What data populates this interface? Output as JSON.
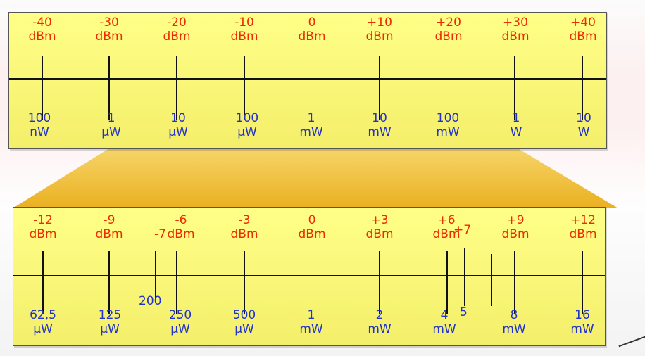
{
  "top_scale": {
    "items": [
      {
        "dbm_value": "-40",
        "dbm_unit": "dBm",
        "power_value": "100",
        "power_unit": "nW"
      },
      {
        "dbm_value": "-30",
        "dbm_unit": "dBm",
        "power_value": "1",
        "power_unit": "µW"
      },
      {
        "dbm_value": "-20",
        "dbm_unit": "dBm",
        "power_value": "10",
        "power_unit": "µW"
      },
      {
        "dbm_value": "-10",
        "dbm_unit": "dBm",
        "power_value": "100",
        "power_unit": "µW"
      },
      {
        "dbm_value": "0",
        "dbm_unit": "dBm",
        "power_value": "1",
        "power_unit": "mW"
      },
      {
        "dbm_value": "+10",
        "dbm_unit": "dBm",
        "power_value": "10",
        "power_unit": "mW"
      },
      {
        "dbm_value": "+20",
        "dbm_unit": "dBm",
        "power_value": "100",
        "power_unit": "mW"
      },
      {
        "dbm_value": "+30",
        "dbm_unit": "dBm",
        "power_value": "1",
        "power_unit": "W"
      },
      {
        "dbm_value": "+40",
        "dbm_unit": "dBm",
        "power_value": "10",
        "power_unit": "W"
      }
    ]
  },
  "bottom_scale": {
    "items": [
      {
        "dbm_value": "-12",
        "dbm_unit": "dBm",
        "power_value": "62,5",
        "power_unit": "µW"
      },
      {
        "dbm_value": "-9",
        "dbm_unit": "dBm",
        "power_value": "125",
        "power_unit": "µW"
      },
      {
        "dbm_value": "-6",
        "dbm_unit": "dBm",
        "power_value": "250",
        "power_unit": "µW"
      },
      {
        "dbm_value": "-3",
        "dbm_unit": "dBm",
        "power_value": "500",
        "power_unit": "µW"
      },
      {
        "dbm_value": "0",
        "dbm_unit": "dBm",
        "power_value": "1",
        "power_unit": "mW"
      },
      {
        "dbm_value": "+3",
        "dbm_unit": "dBm",
        "power_value": "2",
        "power_unit": "mW"
      },
      {
        "dbm_value": "+6",
        "dbm_unit": "dBm",
        "power_value": "4",
        "power_unit": "mW"
      },
      {
        "dbm_value": "+9",
        "dbm_unit": "dBm",
        "power_value": "8",
        "power_unit": "mW"
      },
      {
        "dbm_value": "+12",
        "dbm_unit": "dBm",
        "power_value": "16",
        "power_unit": "mW"
      }
    ],
    "extras": {
      "minus7_dbm": "-7",
      "power_200": "200",
      "plus7_dbm": "+7",
      "power_5": "5"
    }
  },
  "colors": {
    "dbm_text": "#ee2a00",
    "power_text": "#2233cc",
    "scale_fill": "#ffff88",
    "funnel": "#f0c030"
  }
}
